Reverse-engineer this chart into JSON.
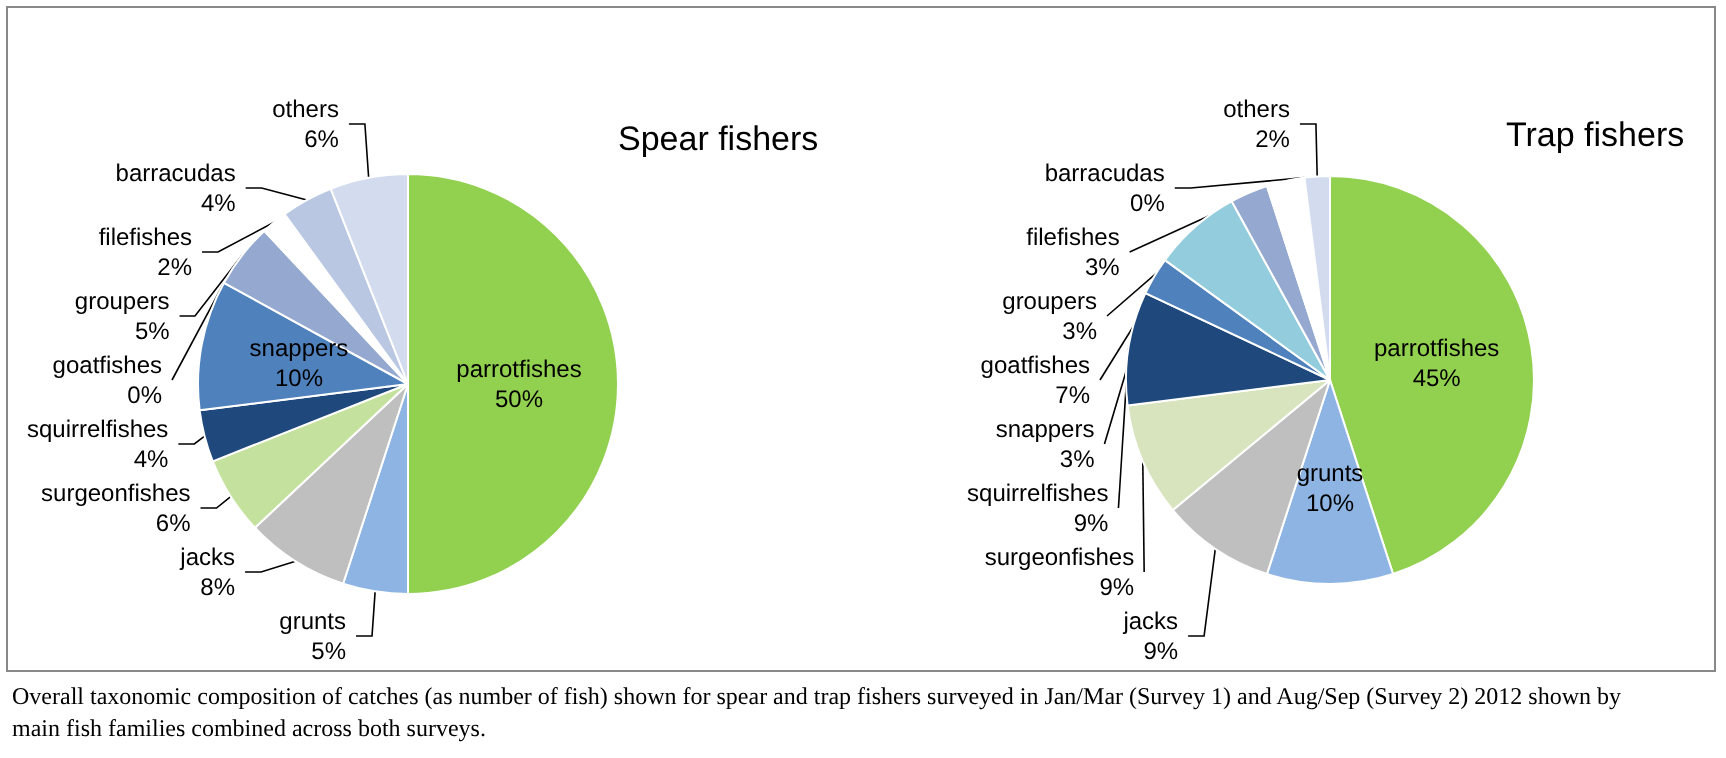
{
  "chart_data": [
    {
      "type": "pie",
      "title": "Spear fishers",
      "categories": [
        "parrotfishes",
        "grunts",
        "jacks",
        "surgeonfishes",
        "squirrelfishes",
        "snappers",
        "goatfishes",
        "groupers",
        "filefishes",
        "barracudas",
        "others"
      ],
      "values": [
        50,
        5,
        8,
        6,
        4,
        10,
        0,
        5,
        2,
        4,
        6
      ],
      "value_labels": [
        "50%",
        "5%",
        "8%",
        "6%",
        "4%",
        "10%",
        "0%",
        "5%",
        "2%",
        "4%",
        "6%"
      ],
      "colors": [
        "#92d050",
        "#8db4e2",
        "#bfbfbf",
        "#c4e29e",
        "#1f497d",
        "#4f81bd",
        "#93cddd",
        "#95a9d0",
        "#ffffff",
        "#b9c7e3",
        "#d3dcee"
      ],
      "legend": false,
      "annotations": [
        "Overall taxonomic composition of catches (as number of fish) shown for spear and trap fishers surveyed in Jan/Mar  (Survey 1) and Aug/Sep (Survey 2) 2012 shown by main fish families combined across both surveys."
      ]
    },
    {
      "type": "pie",
      "title": "Trap fishers",
      "categories": [
        "parrotfishes",
        "grunts",
        "jacks",
        "surgeonfishes",
        "squirrelfishes",
        "snappers",
        "goatfishes",
        "groupers",
        "filefishes",
        "barracudas",
        "others"
      ],
      "values": [
        45,
        10,
        9,
        9,
        9,
        3,
        7,
        3,
        3,
        0,
        2
      ],
      "value_labels": [
        "45%",
        "10%",
        "9%",
        "9%",
        "9%",
        "3%",
        "7%",
        "3%",
        "3%",
        "0%",
        "2%"
      ],
      "colors": [
        "#92d050",
        "#8db4e2",
        "#bfbfbf",
        "#d7e4bd",
        "#1f497d",
        "#4f81bd",
        "#93cddd",
        "#95a9d0",
        "#ffffff",
        "#b9c7e3",
        "#d3dcee"
      ],
      "legend": false
    }
  ]
}
